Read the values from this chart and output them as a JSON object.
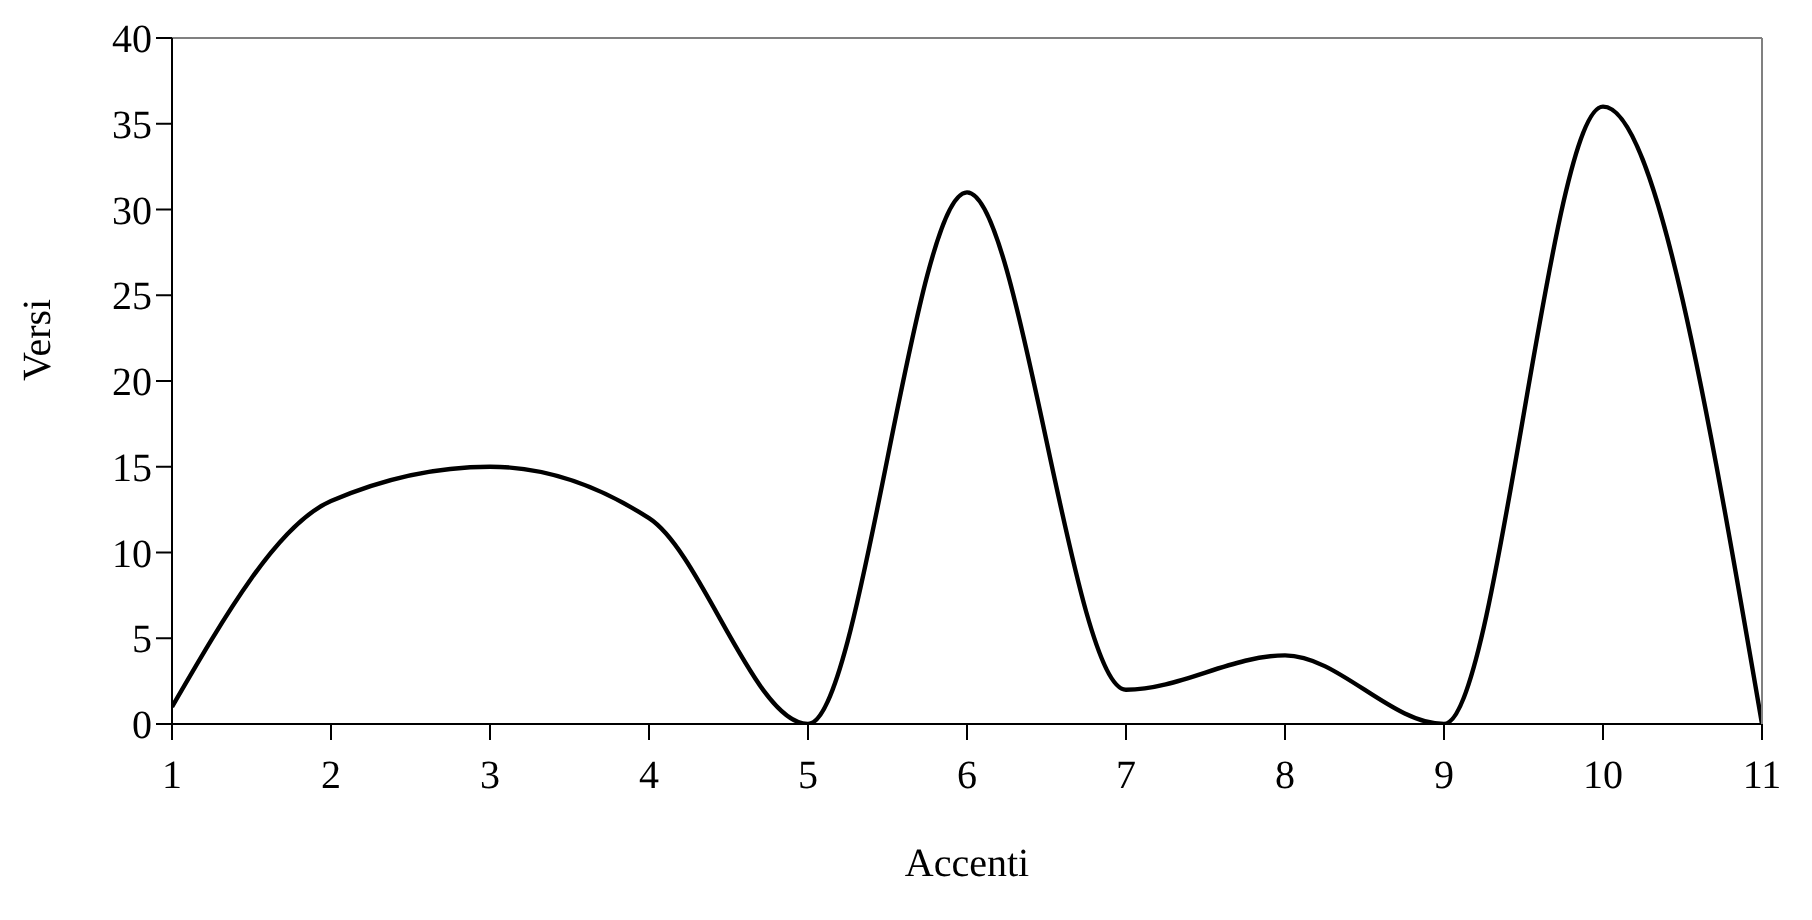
{
  "chart_data": {
    "type": "line",
    "xlabel": "Accenti",
    "ylabel": "Versi",
    "x": [
      1,
      2,
      3,
      4,
      5,
      6,
      7,
      8,
      9,
      10,
      11
    ],
    "series": [
      {
        "color": "#000000",
        "values": [
          1,
          13,
          15,
          12,
          0,
          31,
          2,
          4,
          0,
          36,
          0
        ]
      }
    ],
    "xlim": [
      1,
      11
    ],
    "xticks": [
      1,
      2,
      3,
      4,
      5,
      6,
      7,
      8,
      9,
      10,
      11
    ],
    "ylim": [
      0,
      40
    ],
    "yticks": [
      0,
      5,
      10,
      15,
      20,
      25,
      30,
      35,
      40
    ],
    "grid": false,
    "legend": false,
    "marker": "none",
    "line_style": "solid"
  }
}
